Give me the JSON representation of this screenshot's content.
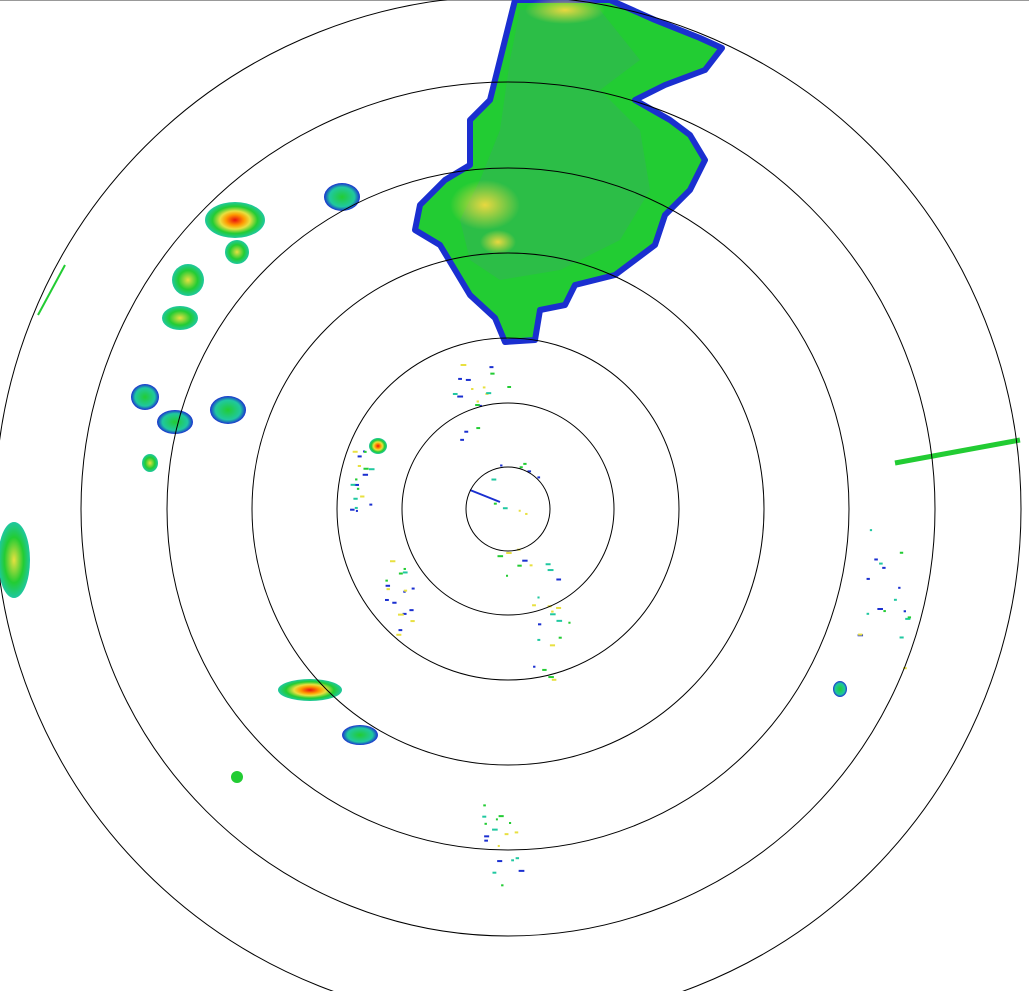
{
  "display": {
    "type": "radar-ppi",
    "range_ring_count": 7,
    "colors": {
      "background": "#ffffff",
      "ring": "#000000",
      "weak_echo": "#1a2fd0",
      "light_echo": "#20c8a0",
      "moderate_echo": "#22cc33",
      "strong_echo": "#e8e040",
      "heavy_echo": "#ff8800",
      "intense_echo": "#e81010"
    }
  }
}
